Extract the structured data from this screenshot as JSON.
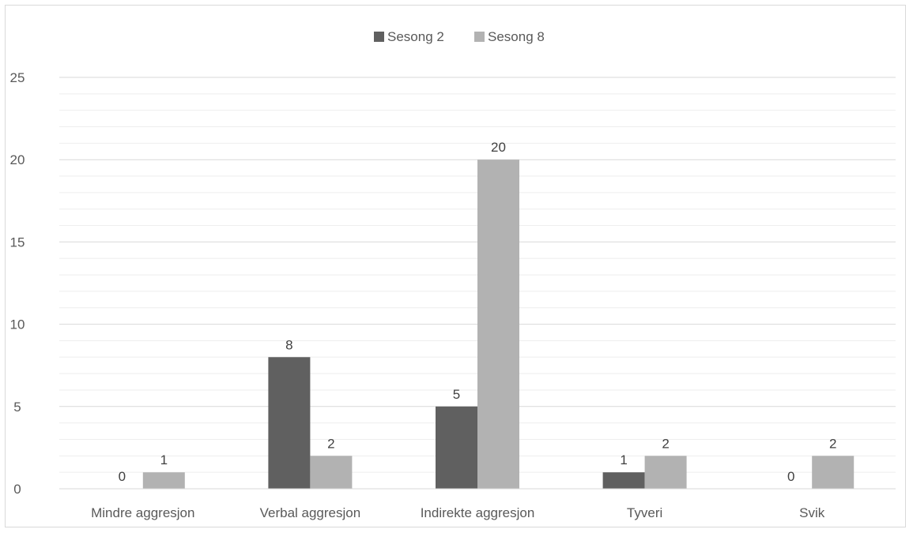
{
  "chart_data": {
    "type": "bar",
    "categories": [
      "Mindre aggresjon",
      "Verbal aggresjon",
      "Indirekte aggresjon",
      "Tyveri",
      "Svik"
    ],
    "series": [
      {
        "name": "Sesong 2",
        "values": [
          0,
          8,
          5,
          1,
          0
        ],
        "color": "#606060"
      },
      {
        "name": "Sesong 8",
        "values": [
          1,
          2,
          20,
          2,
          2
        ],
        "color": "#b2b2b2"
      }
    ],
    "title": "",
    "xlabel": "",
    "ylabel": "",
    "ylim": [
      0,
      25
    ],
    "yticks": [
      0,
      5,
      10,
      15,
      20,
      25
    ],
    "grid": {
      "major": true,
      "minor": true,
      "major_color": "#d9d9d9",
      "minor_color": "#eeeeee"
    },
    "legend": "top-center",
    "data_labels": true
  }
}
